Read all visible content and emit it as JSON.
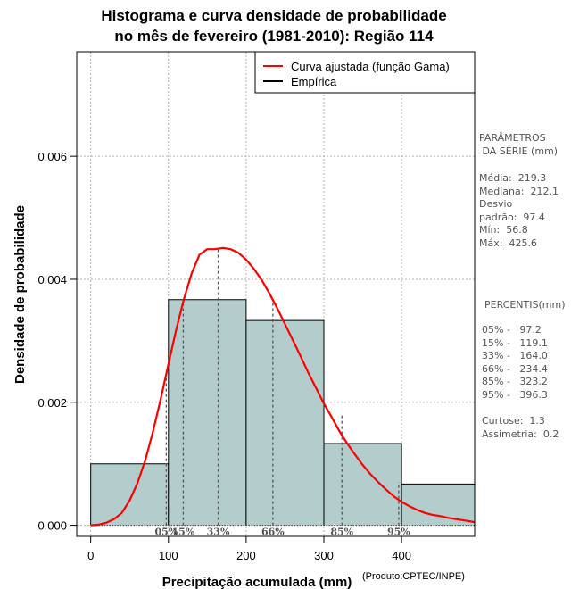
{
  "chart_data": {
    "type": "bar",
    "title": "Histograma e curva densidade de probabilidade",
    "subtitle": "no mês de fevereiro (1981-2010): Região 114",
    "xlabel": "Precipitação acumulada (mm)",
    "ylabel": "Densidade de probabilidade",
    "xlim": [
      -18,
      494
    ],
    "ylim": [
      -0.00018,
      0.0077
    ],
    "x_ticks": [
      0,
      100,
      200,
      300,
      400
    ],
    "y_ticks": [
      0.0,
      0.002,
      0.004,
      0.006
    ],
    "y_tick_labels": [
      "0.000",
      "0.002",
      "0.004",
      "0.006"
    ],
    "grid": true,
    "histogram": {
      "name": "Empírica",
      "bins": [
        {
          "from": 0,
          "to": 100,
          "density": 0.001
        },
        {
          "from": 100,
          "to": 200,
          "density": 0.00367
        },
        {
          "from": 200,
          "to": 300,
          "density": 0.00333
        },
        {
          "from": 300,
          "to": 400,
          "density": 0.00133
        },
        {
          "from": 400,
          "to": 500,
          "density": 0.00067
        }
      ]
    },
    "fitted_curve": {
      "name": "Curva ajustada (função Gama)",
      "color": "#ff0000",
      "x": [
        0,
        10,
        20,
        30,
        40,
        50,
        60,
        70,
        80,
        90,
        100,
        110,
        120,
        130,
        140,
        150,
        160,
        170,
        180,
        190,
        200,
        210,
        220,
        230,
        240,
        250,
        260,
        270,
        280,
        290,
        300,
        310,
        320,
        330,
        340,
        350,
        360,
        370,
        380,
        390,
        400,
        410,
        420,
        430,
        440,
        450,
        460,
        470,
        480,
        490,
        494
      ],
      "y": [
        0,
        1e-05,
        4e-05,
        0.0001,
        0.0002,
        0.0004,
        0.00068,
        0.00105,
        0.00152,
        0.00205,
        0.00262,
        0.00318,
        0.00368,
        0.0041,
        0.0044,
        0.00449,
        0.00449,
        0.00451,
        0.00449,
        0.00443,
        0.00432,
        0.00417,
        0.00399,
        0.00377,
        0.00353,
        0.00327,
        0.00301,
        0.00275,
        0.00248,
        0.00223,
        0.00198,
        0.00176,
        0.00153,
        0.00133,
        0.00115,
        0.00098,
        0.00083,
        0.0007,
        0.00058,
        0.00047,
        0.00038,
        0.00031,
        0.00025,
        0.0002,
        0.00017,
        0.00015,
        0.00012,
        0.0001,
        8e-05,
        6e-05,
        5e-05
      ]
    },
    "percentile_markers": [
      {
        "label": "05%",
        "x": 97.2,
        "height": 0.00252
      },
      {
        "label": "15%",
        "x": 119.1,
        "height": 0.00368
      },
      {
        "label": "33%",
        "x": 164.0,
        "height": 0.0045
      },
      {
        "label": "66%",
        "x": 234.4,
        "height": 0.00367
      },
      {
        "label": "85%",
        "x": 323.2,
        "height": 0.0018
      },
      {
        "label": "95%",
        "x": 396.3,
        "height": 0.0007
      }
    ],
    "legend": {
      "placement": "top-right",
      "entries": [
        {
          "label": "Curva ajustada (função Gama)",
          "color": "#ff0000"
        },
        {
          "label": "Empírica",
          "color": "#000000"
        }
      ]
    },
    "colors": {
      "bar_fill": "#b3cccc",
      "curve": "#ff0000",
      "grid": "#b3b3b3",
      "marker": "#555555"
    }
  },
  "side_panel": {
    "params_title": "PARÂMETROS\n DA SÉRIE (mm)",
    "params_body": "Média:  219.3\nMediana:  212.1\nDesvio\npadrão:  97.4\nMín:  56.8\nMáx:  425.6",
    "percentis_title": "PERCENTIS(mm)",
    "percentis_body": "05% -   97.2\n15% -   119.1\n33% -   164.0\n66% -   234.4\n85% -   323.2\n95% -   396.3",
    "extra_body": "Curtose:  1.3\nAssimetria:  0.2"
  },
  "credit": "(Produto:CPTEC/INPE)"
}
